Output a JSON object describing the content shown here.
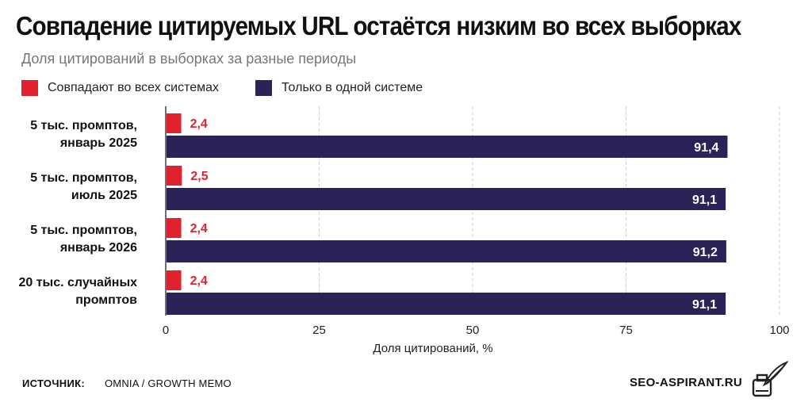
{
  "header": {
    "title": "Совпадение цитируемых URL остаётся низким во всех выборках",
    "subtitle": "Доля цитирований в выборках за разные периоды"
  },
  "legend": [
    {
      "label": "Совпадают во всех системах",
      "color": "#e0222e"
    },
    {
      "label": "Только в одной системе",
      "color": "#2b2358"
    }
  ],
  "chart_data": {
    "type": "bar",
    "orientation": "horizontal",
    "categories": [
      [
        "5 тыс. промптов,",
        "январь 2025"
      ],
      [
        "5 тыс. промптов,",
        "июль 2025"
      ],
      [
        "5 тыс. промптов,",
        "январь 2026"
      ],
      [
        "20 тыс. случайных",
        "промптов"
      ]
    ],
    "series": [
      {
        "name": "Совпадают во всех системах",
        "color": "#e0222e",
        "values": [
          2.4,
          2.5,
          2.4,
          2.4
        ],
        "labels": [
          "2,4",
          "2,5",
          "2,4",
          "2,4"
        ]
      },
      {
        "name": "Только в одной системе",
        "color": "#2b2358",
        "values": [
          91.4,
          91.1,
          91.2,
          91.1
        ],
        "labels": [
          "91,4",
          "91,1",
          "91,2",
          "91,1"
        ]
      }
    ],
    "xlabel": "Доля цитирований, %",
    "xlim": [
      0,
      100
    ],
    "xticks": [
      0,
      25,
      50,
      75,
      100
    ],
    "grid": "vertical dashed",
    "legend_position": "top-left"
  },
  "footer": {
    "source_label": "ИСТОЧНИК:",
    "source": "OMNIA / GROWTH MEMO",
    "brand": "SEO-ASPIRANT.RU",
    "brand_icon": "inkwell-quill-icon"
  }
}
